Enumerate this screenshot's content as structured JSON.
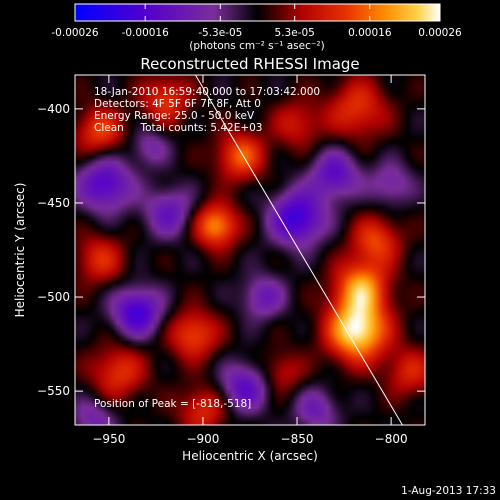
{
  "chart_data": {
    "type": "heatmap",
    "title": "Reconstructed RHESSI Image",
    "xlabel": "Heliocentric X (arcsec)",
    "ylabel": "Heliocentric Y (arcsec)",
    "xlim": [
      -968,
      -782
    ],
    "ylim": [
      -568,
      -382
    ],
    "x_ticks": [
      -950,
      -900,
      -850,
      -800
    ],
    "y_ticks": [
      -400,
      -450,
      -500,
      -550
    ],
    "colorbar": {
      "ticks": [
        "-0.00026",
        "-0.00016",
        "-5.3e-05",
        "5.3e-05",
        "0.00016",
        "0.00026"
      ],
      "tick_values": [
        -0.00026,
        -0.00016,
        -5.3e-05,
        5.3e-05,
        0.00016,
        0.00026
      ],
      "range": [
        -0.00026,
        0.00026
      ],
      "units": "(photons cm⁻² s⁻¹ asec⁻²)",
      "colors": [
        "#0000ff",
        "#5500cc",
        "#7a2e9a",
        "#000000",
        "#b00000",
        "#e83000",
        "#ff8c00",
        "#ffd24a",
        "#ffffff"
      ]
    },
    "peak": [
      -818,
      -518
    ],
    "limb_line": {
      "from": [
        -904,
        -382
      ],
      "to": [
        -794,
        -568
      ]
    },
    "sources": [
      {
        "x": -818,
        "y": -518,
        "amplitude": 0.00026,
        "sigma": 11
      },
      {
        "x": -816,
        "y": -495,
        "amplitude": 0.00019,
        "sigma": 10
      },
      {
        "x": -808,
        "y": -470,
        "amplitude": 0.00013,
        "sigma": 9
      },
      {
        "x": -893,
        "y": -462,
        "amplitude": 0.00019,
        "sigma": 8
      },
      {
        "x": -880,
        "y": -425,
        "amplitude": 0.00015,
        "sigma": 9
      },
      {
        "x": -955,
        "y": -412,
        "amplitude": 0.00013,
        "sigma": 9
      },
      {
        "x": -920,
        "y": -395,
        "amplitude": 0.00012,
        "sigma": 9
      },
      {
        "x": -818,
        "y": -400,
        "amplitude": 0.00012,
        "sigma": 11
      },
      {
        "x": -850,
        "y": -408,
        "amplitude": 9e-05,
        "sigma": 9
      },
      {
        "x": -955,
        "y": -480,
        "amplitude": 0.00011,
        "sigma": 9
      },
      {
        "x": -905,
        "y": -520,
        "amplitude": 0.00014,
        "sigma": 9
      },
      {
        "x": -945,
        "y": -540,
        "amplitude": 0.00012,
        "sigma": 10
      },
      {
        "x": -900,
        "y": -560,
        "amplitude": 0.00011,
        "sigma": 9
      },
      {
        "x": -858,
        "y": -540,
        "amplitude": 8e-05,
        "sigma": 8
      },
      {
        "x": -790,
        "y": -540,
        "amplitude": 0.0001,
        "sigma": 9
      },
      {
        "x": -952,
        "y": -440,
        "amplitude": -0.00016,
        "sigma": 10
      },
      {
        "x": -918,
        "y": -455,
        "amplitude": -0.00012,
        "sigma": 9
      },
      {
        "x": -850,
        "y": -458,
        "amplitude": -0.00019,
        "sigma": 10
      },
      {
        "x": -830,
        "y": -435,
        "amplitude": -0.00014,
        "sigma": 9
      },
      {
        "x": -935,
        "y": -508,
        "amplitude": -0.00018,
        "sigma": 9
      },
      {
        "x": -868,
        "y": -500,
        "amplitude": -0.00011,
        "sigma": 8
      },
      {
        "x": -878,
        "y": -548,
        "amplitude": -0.00014,
        "sigma": 9
      },
      {
        "x": -840,
        "y": -560,
        "amplitude": -0.0001,
        "sigma": 8
      },
      {
        "x": -800,
        "y": -440,
        "amplitude": -9e-05,
        "sigma": 8
      },
      {
        "x": -928,
        "y": -420,
        "amplitude": -8e-05,
        "sigma": 7
      },
      {
        "x": -958,
        "y": -565,
        "amplitude": -9e-05,
        "sigma": 8
      }
    ]
  },
  "overlay": {
    "line1": "18-Jan-2010 16:59:40.000 to 17:03:42.000",
    "line2": "Detectors: 4F 5F 6F 7F 8F, Att 0",
    "line3": "Energy Range: 25.0 - 50.0 keV",
    "line4": "Clean     Total counts: 5.42E+03",
    "peak_label": "Position of Peak = [-818,-518]"
  },
  "footer": {
    "date": "1-Aug-2013 17:33"
  }
}
